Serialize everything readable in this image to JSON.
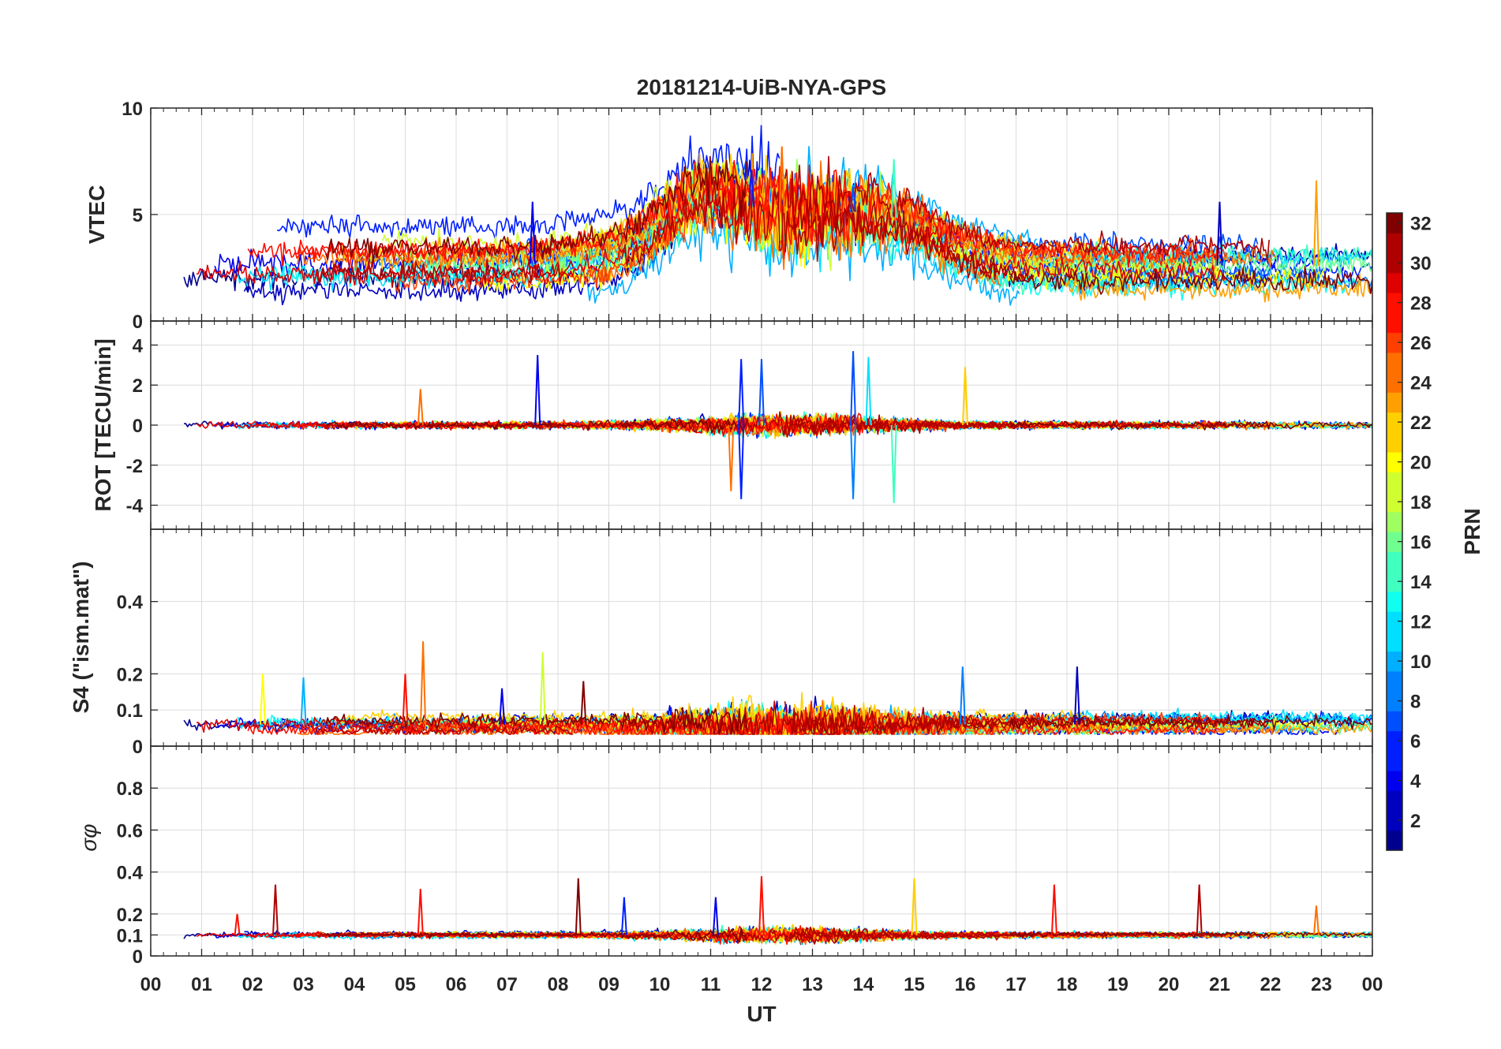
{
  "chart_data": {
    "type": "line",
    "title": "20181214-UiB-NYA-GPS",
    "xlabel": "UT",
    "x_tick_labels": [
      "00",
      "01",
      "02",
      "03",
      "04",
      "05",
      "06",
      "07",
      "08",
      "09",
      "10",
      "11",
      "12",
      "13",
      "14",
      "15",
      "16",
      "17",
      "18",
      "19",
      "20",
      "21",
      "22",
      "23",
      "00"
    ],
    "xlim": [
      0,
      24
    ],
    "grid": true,
    "colorbar": {
      "label": "PRN",
      "range": [
        1,
        32
      ],
      "tick_labels": [
        "2",
        "4",
        "6",
        "8",
        "10",
        "12",
        "14",
        "16",
        "18",
        "20",
        "22",
        "24",
        "26",
        "28",
        "30",
        "32"
      ],
      "colormap": "jet",
      "colors": [
        "#00008f",
        "#0000bf",
        "#0000ef",
        "#001fff",
        "#004fff",
        "#007fff",
        "#00afff",
        "#00dfff",
        "#10ffef",
        "#40ffbf",
        "#70ff8f",
        "#9fff60",
        "#cfff30",
        "#ffff00",
        "#ffcf00",
        "#ff9f00",
        "#ff6f00",
        "#ff3f00",
        "#ff0f00",
        "#df0000",
        "#af0000",
        "#800000"
      ]
    },
    "panels": [
      {
        "id": "vtec",
        "ylabel": "VTEC",
        "ylim": [
          0,
          10
        ],
        "y_tick_labels": [
          "0",
          "5",
          "10"
        ],
        "baseline": 2.6,
        "spread": 0.9,
        "noise": 0.35,
        "peaks": [
          [
            12.0,
            2.2,
            2.5
          ],
          [
            14.5,
            1.5,
            1.5
          ],
          [
            10.8,
            1.5,
            1.0
          ]
        ],
        "spikes": [
          [
            12.4,
            8.2,
            24
          ],
          [
            14.6,
            7.6,
            15
          ],
          [
            11.8,
            7.1,
            5
          ],
          [
            22.9,
            6.6,
            23
          ],
          [
            13.8,
            6.3,
            7
          ],
          [
            21.0,
            5.6,
            3
          ],
          [
            7.5,
            5.6,
            4
          ]
        ]
      },
      {
        "id": "rot",
        "ylabel": "ROT [TECU/min]",
        "ylim": [
          -5.2,
          5.2
        ],
        "y_tick_labels": [
          "-4",
          "-2",
          "0",
          "2",
          "4"
        ],
        "baseline": 0.0,
        "spread": 0.0,
        "noise": 0.12,
        "peaks": [],
        "spikes": [
          [
            7.6,
            3.5,
            4
          ],
          [
            11.6,
            3.3,
            5
          ],
          [
            12.0,
            3.3,
            7
          ],
          [
            13.8,
            3.7,
            7
          ],
          [
            11.6,
            -3.7,
            5
          ],
          [
            11.4,
            -3.3,
            25
          ],
          [
            14.6,
            -3.9,
            15
          ],
          [
            13.8,
            -3.7,
            9
          ],
          [
            16.0,
            2.9,
            21
          ],
          [
            14.1,
            3.4,
            12
          ],
          [
            5.3,
            1.8,
            24
          ]
        ]
      },
      {
        "id": "s4",
        "ylabel": "S4 (\"ism.mat\")",
        "ylim": [
          0,
          0.6
        ],
        "y_tick_labels": [
          "0",
          "0.1",
          "0.2",
          "0.4"
        ],
        "baseline": 0.06,
        "spread": 0.015,
        "noise": 0.012,
        "peaks": [],
        "spikes": [
          [
            5.35,
            0.29,
            24
          ],
          [
            7.7,
            0.26,
            19
          ],
          [
            2.2,
            0.2,
            20
          ],
          [
            15.95,
            0.22,
            9
          ],
          [
            18.2,
            0.22,
            3
          ],
          [
            5.0,
            0.2,
            28
          ],
          [
            3.0,
            0.19,
            10
          ],
          [
            6.9,
            0.16,
            4
          ],
          [
            8.5,
            0.18,
            32
          ]
        ]
      },
      {
        "id": "sigma",
        "ylabel": "σφ",
        "ylim": [
          0,
          1
        ],
        "y_tick_labels": [
          "0",
          "0.1",
          "0.2",
          "0.4",
          "0.6",
          "0.8"
        ],
        "baseline": 0.1,
        "spread": 0.005,
        "noise": 0.008,
        "peaks": [],
        "spikes": [
          [
            8.4,
            0.37,
            32
          ],
          [
            12.0,
            0.38,
            28
          ],
          [
            15.0,
            0.37,
            22
          ],
          [
            2.45,
            0.34,
            30
          ],
          [
            20.6,
            0.34,
            31
          ],
          [
            17.75,
            0.34,
            27
          ],
          [
            5.3,
            0.32,
            28
          ],
          [
            1.7,
            0.2,
            27
          ],
          [
            22.9,
            0.24,
            24
          ],
          [
            9.3,
            0.28,
            6
          ],
          [
            11.1,
            0.28,
            4
          ]
        ]
      }
    ]
  }
}
